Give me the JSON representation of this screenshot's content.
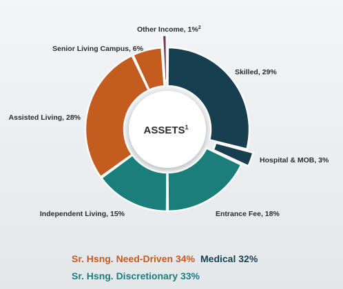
{
  "colors": {
    "need_driven": "#c45b1f",
    "discretionary": "#1a7f7a",
    "medical": "#173f4f",
    "other": "#7a3a4c"
  },
  "chart_data": {
    "type": "pie",
    "title": "ASSETS",
    "title_superscript": "1",
    "slices": [
      {
        "label": "Skilled, 29%",
        "value": 29,
        "group": "medical"
      },
      {
        "label": "Hospital & MOB, 3%",
        "value": 3,
        "group": "medical"
      },
      {
        "label": "Entrance Fee, 18%",
        "value": 18,
        "group": "discretionary"
      },
      {
        "label": "Independent Living, 15%",
        "value": 15,
        "group": "discretionary"
      },
      {
        "label": "Assisted Living, 28%",
        "value": 28,
        "group": "need_driven"
      },
      {
        "label": "Senior Living Campus, 6%",
        "value": 6,
        "group": "need_driven"
      },
      {
        "label": "Other Income, 1%",
        "label_superscript": "2",
        "value": 1,
        "group": "other"
      }
    ]
  },
  "legend": {
    "need_driven": {
      "label": "Sr. Hsng. Need-Driven",
      "value": "34%"
    },
    "medical": {
      "label": "Medical",
      "value": "32%"
    },
    "discretionary": {
      "label": "Sr. Hsng. Discretionary",
      "value": "33%"
    }
  }
}
